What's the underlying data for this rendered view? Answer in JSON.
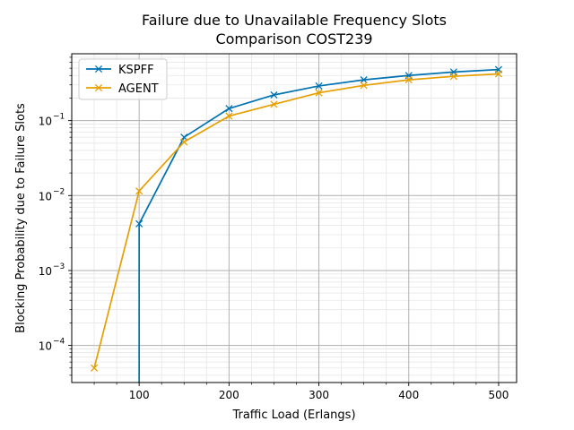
{
  "chart_data": {
    "type": "line",
    "title": "Failure due to Unavailable Frequency Slots",
    "subtitle": "Comparison COST239",
    "xlabel": "Traffic Load (Erlangs)",
    "ylabel": "Blocking Probability due to Failure Slots",
    "xlim": [
      25,
      520
    ],
    "ylim": [
      3.2e-05,
      0.78
    ],
    "yscale": "log",
    "grid": true,
    "legend_position": "upper-left",
    "x_tick_labels": [
      "100",
      "200",
      "300",
      "400",
      "500"
    ],
    "y_tick_labels": [
      "10",
      "10",
      "10",
      "10"
    ],
    "y_tick_exponents": [
      "−4",
      "−3",
      "−2",
      "−1"
    ],
    "series": [
      {
        "name": "KSPFF",
        "color": "#0072B2",
        "marker": "x",
        "x": [
          100,
          100,
          150,
          200,
          250,
          300,
          350,
          400,
          450,
          500
        ],
        "y": [
          1e-07,
          0.0042,
          0.06,
          0.145,
          0.22,
          0.29,
          0.35,
          0.4,
          0.445,
          0.48
        ],
        "markers_at": [
          1,
          2,
          3,
          4,
          5,
          6,
          7,
          8,
          9
        ]
      },
      {
        "name": "AGENT",
        "color": "#E69F00",
        "marker": "x",
        "x": [
          50,
          100,
          150,
          200,
          250,
          300,
          350,
          400,
          450,
          500
        ],
        "y": [
          5e-05,
          0.0115,
          0.052,
          0.115,
          0.165,
          0.235,
          0.295,
          0.35,
          0.39,
          0.42
        ],
        "markers_at": [
          0,
          1,
          2,
          3,
          4,
          5,
          6,
          7,
          8,
          9
        ]
      }
    ]
  }
}
